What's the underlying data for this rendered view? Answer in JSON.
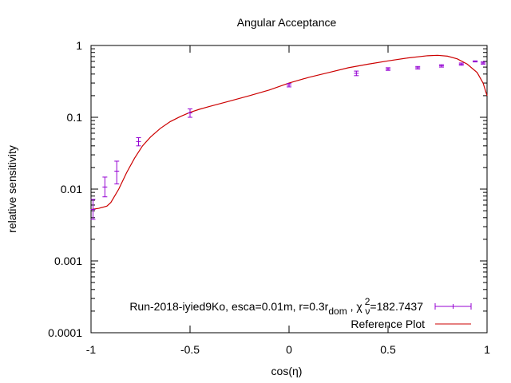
{
  "chart_data": {
    "type": "scatter",
    "title": "Angular Acceptance",
    "xlabel": "cos(η)",
    "ylabel": "relative sensitivity",
    "xlim": [
      -1,
      1
    ],
    "ylim": [
      0.0001,
      1
    ],
    "yscale": "log",
    "grid": false,
    "legend_position": "bottom-right",
    "x_ticks": [
      {
        "value": -1,
        "label": "-1"
      },
      {
        "value": -0.5,
        "label": "-0.5"
      },
      {
        "value": 0,
        "label": "0"
      },
      {
        "value": 0.5,
        "label": "0.5"
      },
      {
        "value": 1,
        "label": "1"
      }
    ],
    "y_ticks": [
      {
        "value": 0.0001,
        "label": "0.0001"
      },
      {
        "value": 0.001,
        "label": "0.001"
      },
      {
        "value": 0.01,
        "label": "0.01"
      },
      {
        "value": 0.1,
        "label": "0.1"
      },
      {
        "value": 1,
        "label": "1"
      }
    ],
    "series": [
      {
        "legend_main": "Run-2018-iyied9Ko, esca=0.01m, r=0.3r",
        "legend_sub1": "dom",
        "legend_mid": " , χ",
        "legend_sup": "2",
        "legend_sub2": "ν",
        "legend_tail": "=182.7437",
        "color": "#9400d3",
        "style": "points-with-errorbars",
        "points": [
          {
            "x": -0.99,
            "y": 0.0052,
            "ylow": 0.0038,
            "yhigh": 0.0072
          },
          {
            "x": -0.93,
            "y": 0.0107,
            "ylow": 0.0078,
            "yhigh": 0.0147
          },
          {
            "x": -0.87,
            "y": 0.0178,
            "ylow": 0.0118,
            "yhigh": 0.0245
          },
          {
            "x": -0.76,
            "y": 0.046,
            "ylow": 0.04,
            "yhigh": 0.052
          },
          {
            "x": -0.5,
            "y": 0.115,
            "ylow": 0.1,
            "yhigh": 0.131
          },
          {
            "x": 0.0,
            "y": 0.28,
            "ylow": 0.265,
            "yhigh": 0.295
          },
          {
            "x": 0.34,
            "y": 0.41,
            "ylow": 0.38,
            "yhigh": 0.44
          },
          {
            "x": 0.5,
            "y": 0.47,
            "ylow": 0.45,
            "yhigh": 0.49
          },
          {
            "x": 0.65,
            "y": 0.49,
            "ylow": 0.47,
            "yhigh": 0.51
          },
          {
            "x": 0.77,
            "y": 0.52,
            "ylow": 0.5,
            "yhigh": 0.54
          },
          {
            "x": 0.87,
            "y": 0.55,
            "ylow": 0.53,
            "yhigh": 0.57
          },
          {
            "x": 0.94,
            "y": 0.6,
            "ylow": 0.59,
            "yhigh": 0.61
          },
          {
            "x": 0.98,
            "y": 0.57,
            "ylow": 0.55,
            "yhigh": 0.59
          }
        ]
      },
      {
        "name": "Reference Plot",
        "color": "#cc0000",
        "style": "line",
        "points": [
          {
            "x": -1.0,
            "y": 0.0052
          },
          {
            "x": -0.96,
            "y": 0.0054
          },
          {
            "x": -0.92,
            "y": 0.0058
          },
          {
            "x": -0.9,
            "y": 0.0065
          },
          {
            "x": -0.86,
            "y": 0.01
          },
          {
            "x": -0.82,
            "y": 0.017
          },
          {
            "x": -0.78,
            "y": 0.027
          },
          {
            "x": -0.74,
            "y": 0.04
          },
          {
            "x": -0.7,
            "y": 0.053
          },
          {
            "x": -0.65,
            "y": 0.07
          },
          {
            "x": -0.6,
            "y": 0.087
          },
          {
            "x": -0.55,
            "y": 0.102
          },
          {
            "x": -0.5,
            "y": 0.117
          },
          {
            "x": -0.45,
            "y": 0.13
          },
          {
            "x": -0.4,
            "y": 0.142
          },
          {
            "x": -0.3,
            "y": 0.168
          },
          {
            "x": -0.2,
            "y": 0.2
          },
          {
            "x": -0.1,
            "y": 0.24
          },
          {
            "x": 0.0,
            "y": 0.3
          },
          {
            "x": 0.1,
            "y": 0.36
          },
          {
            "x": 0.2,
            "y": 0.42
          },
          {
            "x": 0.3,
            "y": 0.49
          },
          {
            "x": 0.4,
            "y": 0.55
          },
          {
            "x": 0.5,
            "y": 0.61
          },
          {
            "x": 0.6,
            "y": 0.67
          },
          {
            "x": 0.7,
            "y": 0.72
          },
          {
            "x": 0.75,
            "y": 0.73
          },
          {
            "x": 0.8,
            "y": 0.71
          },
          {
            "x": 0.85,
            "y": 0.65
          },
          {
            "x": 0.9,
            "y": 0.55
          },
          {
            "x": 0.95,
            "y": 0.42
          },
          {
            "x": 0.98,
            "y": 0.3
          },
          {
            "x": 1.0,
            "y": 0.2
          }
        ]
      }
    ]
  }
}
